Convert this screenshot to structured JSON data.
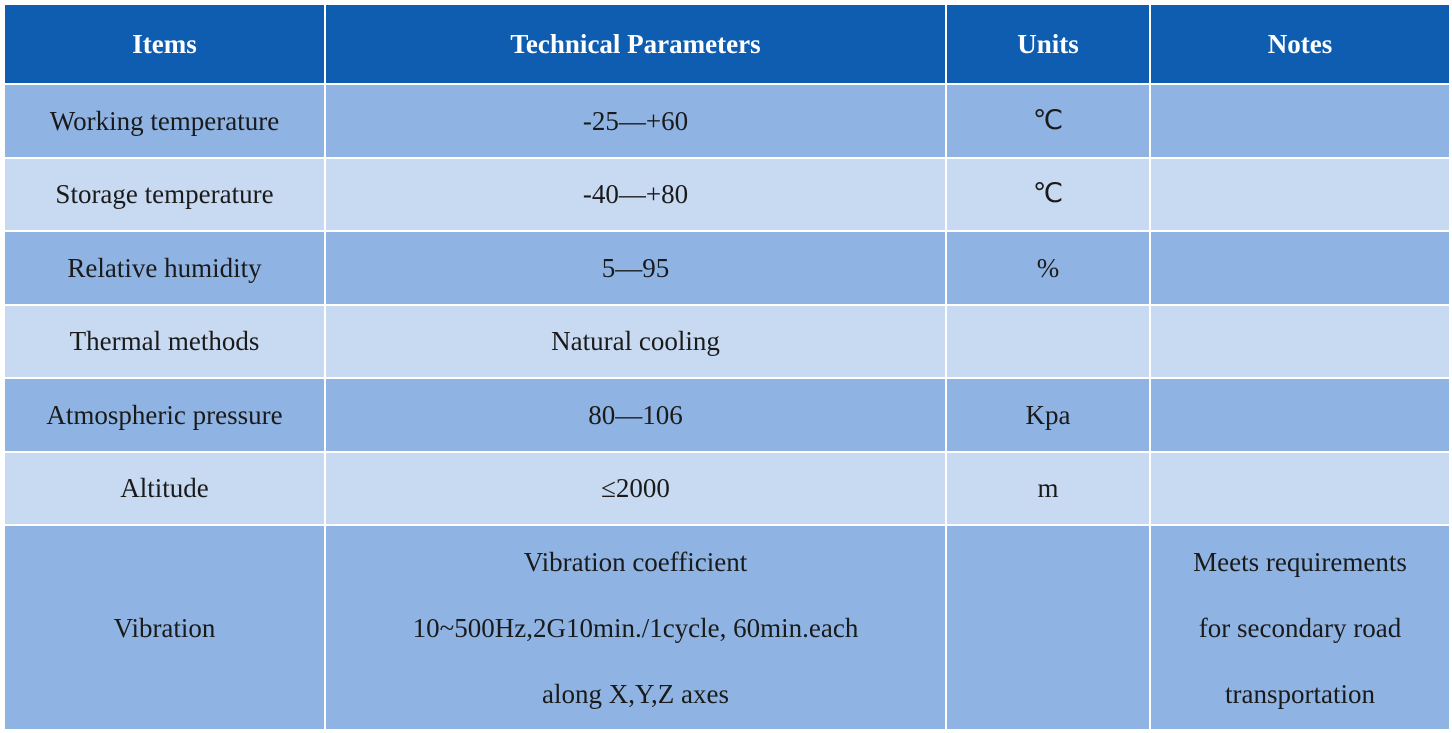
{
  "table": {
    "headers": [
      "Items",
      "Technical Parameters",
      "Units",
      "Notes"
    ],
    "colors": {
      "header_bg": "#0e5db1",
      "row_dark": "#8fb4e3",
      "row_light": "#c8daf2"
    },
    "rows": [
      {
        "item": "Working temperature",
        "param": "-25—+60",
        "unit": "℃",
        "note": ""
      },
      {
        "item": "Storage temperature",
        "param": "-40—+80",
        "unit": "℃",
        "note": ""
      },
      {
        "item": "Relative humidity",
        "param": "5—95",
        "unit": "%",
        "note": ""
      },
      {
        "item": "Thermal methods",
        "param": "Natural cooling",
        "unit": "",
        "note": ""
      },
      {
        "item": "Atmospheric pressure",
        "param": "80—106",
        "unit": "Kpa",
        "note": ""
      },
      {
        "item": "Altitude",
        "param": "≤2000",
        "unit": "m",
        "note": ""
      },
      {
        "item": "Vibration",
        "param_lines": [
          "Vibration coefficient",
          "10~500Hz,2G10min./1cycle, 60min.each",
          "along X,Y,Z axes"
        ],
        "unit": "",
        "note_lines": [
          "Meets requirements",
          "for secondary road",
          "transportation"
        ]
      }
    ]
  }
}
